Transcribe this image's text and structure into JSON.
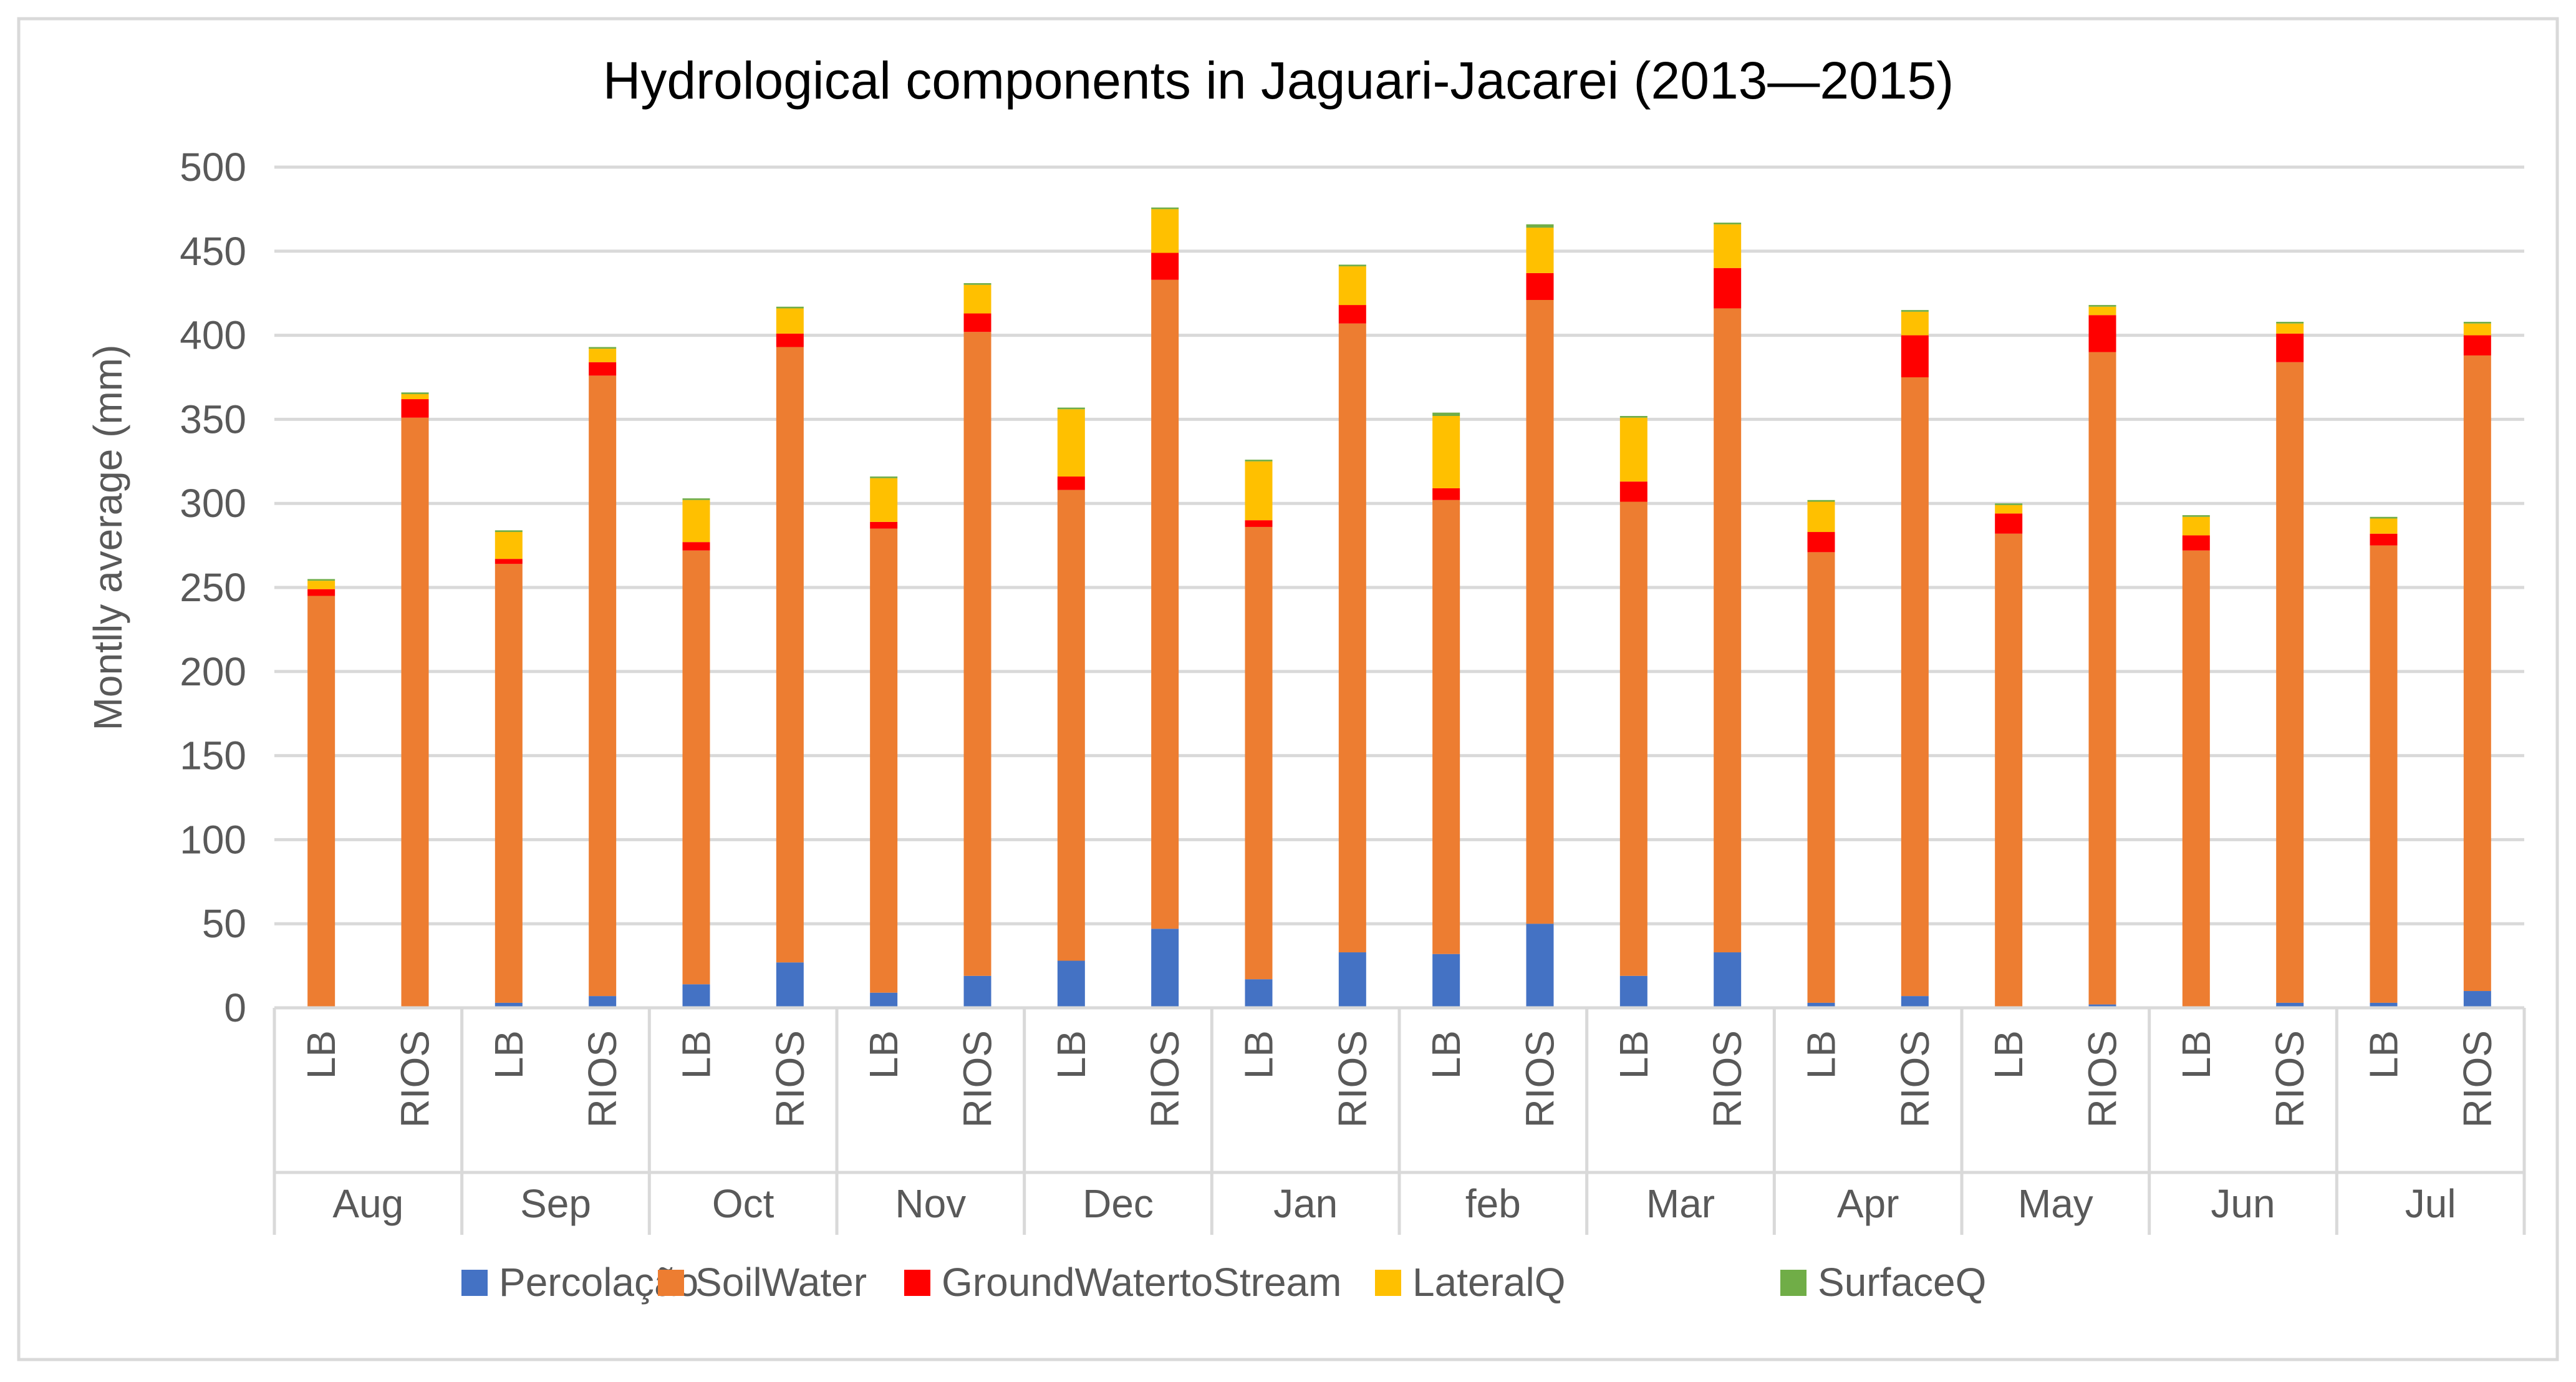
{
  "chart_data": {
    "type": "bar",
    "stacked": true,
    "title": "Hydrological components in Jaguari-Jacarei (2013—2015)",
    "xlabel": "",
    "ylabel": "Montlly average (mm)",
    "ylim": [
      0,
      500
    ],
    "yticks": [
      0,
      50,
      100,
      150,
      200,
      250,
      300,
      350,
      400,
      450,
      500
    ],
    "grid": true,
    "legend_position": "bottom",
    "groups": [
      "Aug",
      "Sep",
      "Oct",
      "Nov",
      "Dec",
      "Jan",
      "feb",
      "Mar",
      "Apr",
      "May",
      "Jun",
      "Jul"
    ],
    "subcategories": [
      "LB",
      "RIOS"
    ],
    "categories": [
      "Aug LB",
      "Aug RIOS",
      "Sep LB",
      "Sep RIOS",
      "Oct LB",
      "Oct RIOS",
      "Nov LB",
      "Nov RIOS",
      "Dec LB",
      "Dec RIOS",
      "Jan LB",
      "Jan RIOS",
      "feb LB",
      "feb RIOS",
      "Mar LB",
      "Mar RIOS",
      "Apr LB",
      "Apr RIOS",
      "May LB",
      "May RIOS",
      "Jun LB",
      "Jun RIOS",
      "Jul LB",
      "Jul RIOS"
    ],
    "series": [
      {
        "name": "Percolação",
        "color": "#4472C4",
        "values": [
          0,
          0,
          3,
          7,
          14,
          27,
          9,
          19,
          28,
          47,
          17,
          33,
          32,
          50,
          19,
          33,
          3,
          7,
          0,
          2,
          0,
          3,
          3,
          10
        ]
      },
      {
        "name": "SoilWater",
        "color": "#ED7D31",
        "values": [
          245,
          351,
          261,
          369,
          258,
          366,
          276,
          383,
          280,
          386,
          269,
          374,
          270,
          371,
          282,
          383,
          268,
          368,
          282,
          388,
          272,
          381,
          272,
          378
        ]
      },
      {
        "name": "GroundWatertoStream",
        "color": "#FF0000",
        "values": [
          4,
          11,
          3,
          8,
          5,
          8,
          4,
          11,
          8,
          16,
          4,
          11,
          7,
          16,
          12,
          24,
          12,
          25,
          12,
          22,
          9,
          17,
          7,
          12
        ]
      },
      {
        "name": "LateralQ",
        "color": "#FFC000",
        "values": [
          5,
          3,
          16,
          8,
          25,
          15,
          26,
          17,
          40,
          26,
          35,
          23,
          43,
          27,
          38,
          26,
          18,
          14,
          5,
          5,
          11,
          6,
          9,
          7
        ]
      },
      {
        "name": "SurfaceQ",
        "color": "#70AD47",
        "values": [
          1,
          1,
          1,
          1,
          1,
          1,
          1,
          1,
          1,
          1,
          1,
          1,
          2,
          2,
          1,
          1,
          1,
          1,
          1,
          1,
          1,
          1,
          1,
          1
        ]
      }
    ]
  }
}
